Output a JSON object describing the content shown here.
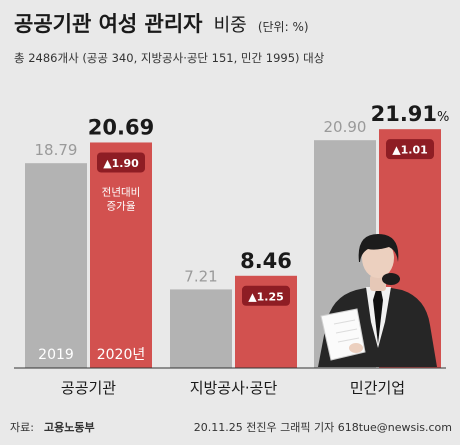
{
  "chart_data": {
    "type": "bar",
    "title": "공공기관 여성 관리자",
    "title_suffix": "비중",
    "unit": "(단위: %)",
    "subtitle": "총 2486개사 (공공 340, 지방공사·공단 151, 민간 1995) 대상",
    "categories": [
      "공공기관",
      "지방공사·공단",
      "민간기업"
    ],
    "series": [
      {
        "name": "2019",
        "values": [
          18.79,
          7.21,
          20.9
        ],
        "color": "#b3b3b3"
      },
      {
        "name": "2020년",
        "values": [
          20.69,
          8.46,
          21.91
        ],
        "color": "#d2514f"
      }
    ],
    "changes": [
      "▲1.90",
      "▲1.25",
      "▲1.01"
    ],
    "change_note": [
      "전년대비",
      "증가율"
    ],
    "percent_sign": "%",
    "ylim": [
      0,
      25
    ],
    "grid": false,
    "legend": "in-bar"
  },
  "footer": {
    "source_label": "자료:",
    "source_name": "고용노동부",
    "credit": "20.11.25 전진우 그래픽 기자 618tue@newsis.com"
  },
  "colors": {
    "background": "#e9e9e9",
    "bar_prev": "#b3b3b3",
    "bar_curr": "#d2514f",
    "badge": "#8e1d24",
    "axis": "#333333"
  }
}
